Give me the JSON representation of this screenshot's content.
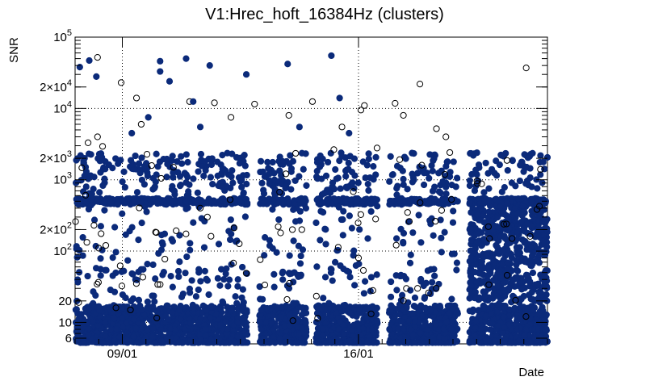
{
  "chart_data": {
    "type": "scatter",
    "title": "V1:Hrec_hoft_16384Hz (clusters)",
    "xlabel": "Date",
    "ylabel": "SNR",
    "yscale": "log",
    "ylim": [
      5,
      100000
    ],
    "xlim": [
      0,
      20
    ],
    "grid": true,
    "x_ticks": [
      {
        "x": 2,
        "label": "09/01"
      },
      {
        "x": 12,
        "label": "16/01"
      }
    ],
    "y_ticks": [
      {
        "v": 100000,
        "base": "10",
        "exp": "5"
      },
      {
        "v": 20000,
        "base": "2×10",
        "exp": "4"
      },
      {
        "v": 10000,
        "base": "10",
        "exp": "4"
      },
      {
        "v": 2000,
        "base": "2×10",
        "exp": "3"
      },
      {
        "v": 1000,
        "base": "10",
        "exp": "3"
      },
      {
        "v": 200,
        "base": "2×10",
        "exp": "2"
      },
      {
        "v": 100,
        "base": "10",
        "exp": "2"
      },
      {
        "v": 20,
        "base": "20",
        "exp": ""
      },
      {
        "v": 10,
        "base": "10",
        "exp": ""
      },
      {
        "v": 6,
        "base": "6",
        "exp": ""
      }
    ],
    "gridlines_y": [
      10,
      100,
      1000,
      10000,
      100000
    ],
    "gridlines_x": [
      2,
      12
    ],
    "series": [
      {
        "name": "filled",
        "color": "#0b2a7a",
        "style": "filled"
      },
      {
        "name": "open",
        "color": "#000000",
        "style": "open"
      }
    ],
    "segments": [
      [
        0,
        7.3
      ],
      [
        7.8,
        9.8
      ],
      [
        10.2,
        12.8
      ],
      [
        13.3,
        16.2
      ],
      [
        16.7,
        20
      ]
    ],
    "dense_band_level": 500,
    "outliers": [
      {
        "x": 0.2,
        "y": 38000,
        "s": "filled"
      },
      {
        "x": 0.6,
        "y": 47000,
        "s": "filled"
      },
      {
        "x": 0.9,
        "y": 28000,
        "s": "filled"
      },
      {
        "x": 0.55,
        "y": 3300,
        "s": "open"
      },
      {
        "x": 0.95,
        "y": 4000,
        "s": "open"
      },
      {
        "x": 0.95,
        "y": 52000,
        "s": "open"
      },
      {
        "x": 1.95,
        "y": 23000,
        "s": "open"
      },
      {
        "x": 2.4,
        "y": 4500,
        "s": "filled"
      },
      {
        "x": 2.6,
        "y": 14000,
        "s": "open"
      },
      {
        "x": 2.8,
        "y": 6000,
        "s": "open"
      },
      {
        "x": 3.1,
        "y": 7500,
        "s": "filled"
      },
      {
        "x": 3.6,
        "y": 46000,
        "s": "filled"
      },
      {
        "x": 3.6,
        "y": 33000,
        "s": "filled"
      },
      {
        "x": 4.0,
        "y": 24000,
        "s": "filled"
      },
      {
        "x": 4.7,
        "y": 50000,
        "s": "filled"
      },
      {
        "x": 4.85,
        "y": 12500,
        "s": "open"
      },
      {
        "x": 5.0,
        "y": 12500,
        "s": "filled"
      },
      {
        "x": 5.3,
        "y": 5500,
        "s": "filled"
      },
      {
        "x": 5.7,
        "y": 40000,
        "s": "filled"
      },
      {
        "x": 5.9,
        "y": 12000,
        "s": "open"
      },
      {
        "x": 6.6,
        "y": 7500,
        "s": "open"
      },
      {
        "x": 7.25,
        "y": 30000,
        "s": "filled"
      },
      {
        "x": 7.6,
        "y": 11500,
        "s": "open"
      },
      {
        "x": 9.0,
        "y": 42000,
        "s": "filled"
      },
      {
        "x": 9.05,
        "y": 8000,
        "s": "open"
      },
      {
        "x": 9.5,
        "y": 5500,
        "s": "filled"
      },
      {
        "x": 10.05,
        "y": 12500,
        "s": "open"
      },
      {
        "x": 10.85,
        "y": 55000,
        "s": "filled"
      },
      {
        "x": 11.2,
        "y": 14000,
        "s": "filled"
      },
      {
        "x": 11.3,
        "y": 5500,
        "s": "open"
      },
      {
        "x": 11.6,
        "y": 4500,
        "s": "filled"
      },
      {
        "x": 12.25,
        "y": 11000,
        "s": "open"
      },
      {
        "x": 13.55,
        "y": 11800,
        "s": "open"
      },
      {
        "x": 13.9,
        "y": 8000,
        "s": "open"
      },
      {
        "x": 14.6,
        "y": 22000,
        "s": "open"
      },
      {
        "x": 15.3,
        "y": 5200,
        "s": "open"
      },
      {
        "x": 15.7,
        "y": 4000,
        "s": "open"
      },
      {
        "x": 19.1,
        "y": 37000,
        "s": "open"
      },
      {
        "x": 1.0,
        "y": 110,
        "s": "open"
      },
      {
        "x": 1.3,
        "y": 120,
        "s": "open"
      },
      {
        "x": 0.8,
        "y": 230,
        "s": "open"
      },
      {
        "x": 3.5,
        "y": 34,
        "s": "open"
      },
      {
        "x": 3.6,
        "y": 34,
        "s": "open"
      },
      {
        "x": 0.15,
        "y": 19,
        "s": "open"
      },
      {
        "x": 9.6,
        "y": 200,
        "s": "open"
      },
      {
        "x": 9.2,
        "y": 200,
        "s": "open"
      },
      {
        "x": 8.6,
        "y": 220,
        "s": "open"
      },
      {
        "x": 8.7,
        "y": 180,
        "s": "open"
      },
      {
        "x": 12.0,
        "y": 80,
        "s": "open"
      },
      {
        "x": 14.5,
        "y": 30,
        "s": "open"
      },
      {
        "x": 17.5,
        "y": 220,
        "s": "open"
      },
      {
        "x": 18.5,
        "y": 150,
        "s": "open"
      },
      {
        "x": 10.5,
        "y": 350,
        "s": "filled"
      },
      {
        "x": 5.3,
        "y": 400,
        "s": "open"
      },
      {
        "x": 5.6,
        "y": 300,
        "s": "open"
      },
      {
        "x": 0.4,
        "y": 2000,
        "s": "filled"
      },
      {
        "x": 12.1,
        "y": 9500,
        "s": "open"
      }
    ]
  }
}
